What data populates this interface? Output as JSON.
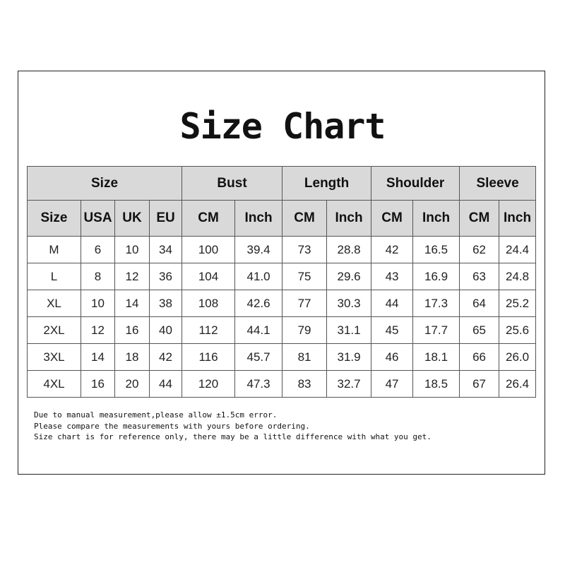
{
  "title": "Size Chart",
  "table": {
    "group_headers": [
      "Size",
      "Bust",
      "Length",
      "Shoulder",
      "Sleeve"
    ],
    "sub_headers": [
      "Size",
      "USA",
      "UK",
      "EU",
      "CM",
      "Inch",
      "CM",
      "Inch",
      "CM",
      "Inch",
      "CM",
      "Inch"
    ],
    "rows": [
      [
        "M",
        "6",
        "10",
        "34",
        "100",
        "39.4",
        "73",
        "28.8",
        "42",
        "16.5",
        "62",
        "24.4"
      ],
      [
        "L",
        "8",
        "12",
        "36",
        "104",
        "41.0",
        "75",
        "29.6",
        "43",
        "16.9",
        "63",
        "24.8"
      ],
      [
        "XL",
        "10",
        "14",
        "38",
        "108",
        "42.6",
        "77",
        "30.3",
        "44",
        "17.3",
        "64",
        "25.2"
      ],
      [
        "2XL",
        "12",
        "16",
        "40",
        "112",
        "44.1",
        "79",
        "31.1",
        "45",
        "17.7",
        "65",
        "25.6"
      ],
      [
        "3XL",
        "14",
        "18",
        "42",
        "116",
        "45.7",
        "81",
        "31.9",
        "46",
        "18.1",
        "66",
        "26.0"
      ],
      [
        "4XL",
        "16",
        "20",
        "44",
        "120",
        "47.3",
        "83",
        "32.7",
        "47",
        "18.5",
        "67",
        "26.4"
      ]
    ]
  },
  "notes": [
    "Due to manual measurement,please allow ±1.5cm error.",
    "Please compare the measurements with yours before ordering.",
    "Size chart is for reference only, there may be a little difference with what you get."
  ],
  "colors": {
    "header_bg": "#d9d9d9",
    "border": "#555555"
  }
}
